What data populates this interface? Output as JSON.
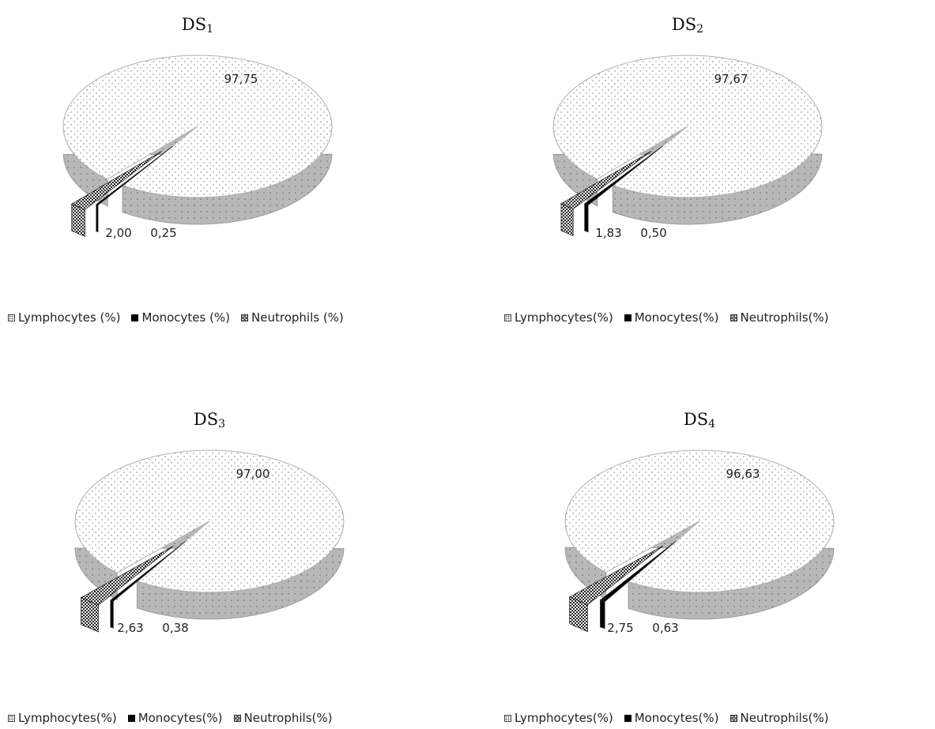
{
  "colors": {
    "lymphocytes_fill": "#ffffff",
    "lymphocytes_side": "#b8b8b8",
    "monocytes_fill": "#000000",
    "neutrophils_fill": "#ffffff"
  },
  "chart_data": [
    {
      "type": "pie",
      "title": "DS",
      "title_sub": "1",
      "style": "3d-exploded",
      "series": [
        {
          "name": "Lymphocytes (%)",
          "value": 97.75,
          "label": "97,75"
        },
        {
          "name": "Monocytes (%)",
          "value": 0.25,
          "label": "0,25"
        },
        {
          "name": "Neutrophils (%)",
          "value": 2.0,
          "label": "2,00"
        }
      ],
      "legend_position": "bottom"
    },
    {
      "type": "pie",
      "title": "DS",
      "title_sub": "2",
      "style": "3d-exploded",
      "series": [
        {
          "name": "Lymphocytes(%)",
          "value": 97.67,
          "label": "97,67"
        },
        {
          "name": "Monocytes(%)",
          "value": 0.5,
          "label": "0,50"
        },
        {
          "name": "Neutrophils(%)",
          "value": 1.83,
          "label": "1,83"
        }
      ],
      "legend_position": "bottom"
    },
    {
      "type": "pie",
      "title": "DS",
      "title_sub": "3",
      "style": "3d-exploded",
      "series": [
        {
          "name": "Lymphocytes(%)",
          "value": 97.0,
          "label": "97,00"
        },
        {
          "name": "Monocytes(%)",
          "value": 0.38,
          "label": "0,38"
        },
        {
          "name": "Neutrophils(%)",
          "value": 2.63,
          "label": "2,63"
        }
      ],
      "legend_position": "bottom"
    },
    {
      "type": "pie",
      "title": "DS",
      "title_sub": "4",
      "style": "3d-exploded",
      "series": [
        {
          "name": "Lymphocytes(%)",
          "value": 96.63,
          "label": "96,63"
        },
        {
          "name": "Monocytes(%)",
          "value": 0.63,
          "label": "0,63"
        },
        {
          "name": "Neutrophils(%)",
          "value": 2.75,
          "label": "2,75"
        }
      ],
      "legend_position": "bottom"
    }
  ]
}
